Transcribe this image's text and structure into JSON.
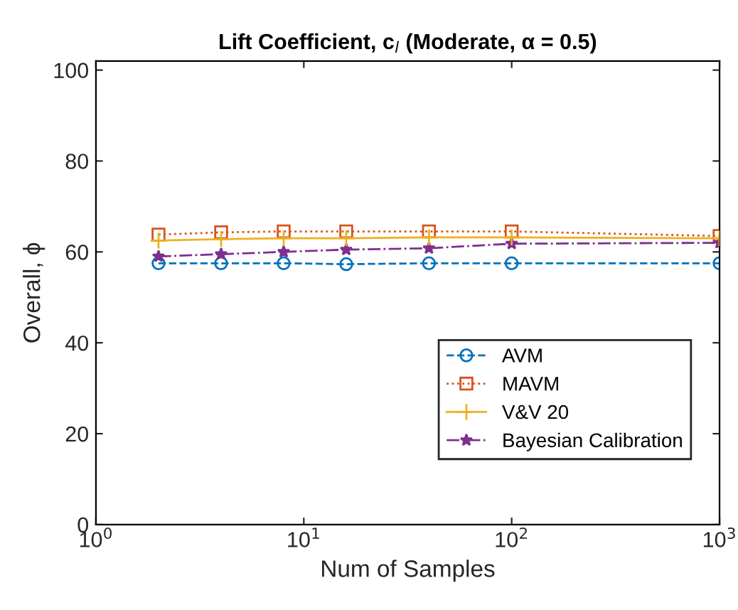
{
  "chart_data": {
    "type": "line",
    "title": "Lift Coefficient, c$_{l}$ (Moderate, α = 0.5)",
    "xlabel": "Num of Samples",
    "ylabel": "Overall, ϕ",
    "log": "x",
    "xlim": [
      1,
      1000
    ],
    "xticks": [
      {
        "value": 1,
        "label": "10$^{0}$"
      },
      {
        "value": 10,
        "label": "10$^{1}$"
      },
      {
        "value": 100,
        "label": "10$^{2}$"
      },
      {
        "value": 1000,
        "label": "10$^{3}$"
      }
    ],
    "ylim": [
      0,
      102
    ],
    "yticks": [
      0,
      20,
      40,
      60,
      80,
      100
    ],
    "grid": false,
    "legend": "bottom right",
    "x": [
      2,
      4,
      8,
      16,
      40,
      100,
      1000
    ],
    "series": [
      {
        "name": "AVM",
        "color": "#0072bd",
        "marker": "circle",
        "line_style": "dashed",
        "values": [
          57.5,
          57.5,
          57.5,
          57.3,
          57.5,
          57.5,
          57.5
        ]
      },
      {
        "name": "MAVM",
        "color": "#d95319",
        "marker": "square",
        "line_style": "dotted",
        "values": [
          63.8,
          64.3,
          64.5,
          64.5,
          64.5,
          64.5,
          63.5
        ]
      },
      {
        "name": "V&V 20",
        "color": "#edb120",
        "marker": "cross",
        "line_style": "solid",
        "values": [
          62.5,
          62.8,
          63.0,
          63.0,
          63.2,
          63.2,
          63.0
        ]
      },
      {
        "name": "Bayesian Calibration",
        "color": "#7e2f8e",
        "marker": "star",
        "line_style": "dashdot",
        "values": [
          59.0,
          59.5,
          60.0,
          60.5,
          60.8,
          61.8,
          62.0
        ]
      }
    ]
  }
}
